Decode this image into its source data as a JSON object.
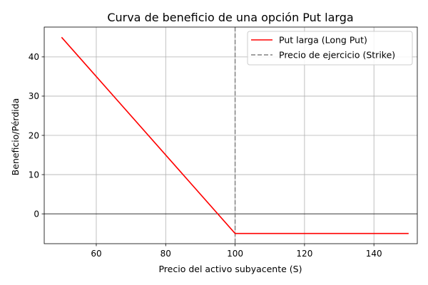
{
  "chart_data": {
    "type": "line",
    "title": "Curva de beneficio de una opción Put larga",
    "xlabel": "Precio del activo subyacente (S)",
    "ylabel": "Beneficio/Pérdida",
    "xlim": [
      45.0,
      152.5
    ],
    "ylim": [
      -7.6,
      47.6
    ],
    "x_ticks": [
      60,
      80,
      100,
      120,
      140
    ],
    "y_ticks": [
      0,
      10,
      20,
      30,
      40
    ],
    "grid": true,
    "legend_position": "top-right",
    "zero_line": 0,
    "series": [
      {
        "name": "Put larga (Long Put)",
        "color": "#ff0000",
        "style": "solid",
        "x": [
          50,
          100,
          150
        ],
        "y": [
          45,
          -5,
          -5
        ]
      }
    ],
    "vertical_lines": [
      {
        "name": "Precio de ejercicio (Strike)",
        "color": "#808080",
        "style": "dashed",
        "x": 100
      }
    ]
  }
}
